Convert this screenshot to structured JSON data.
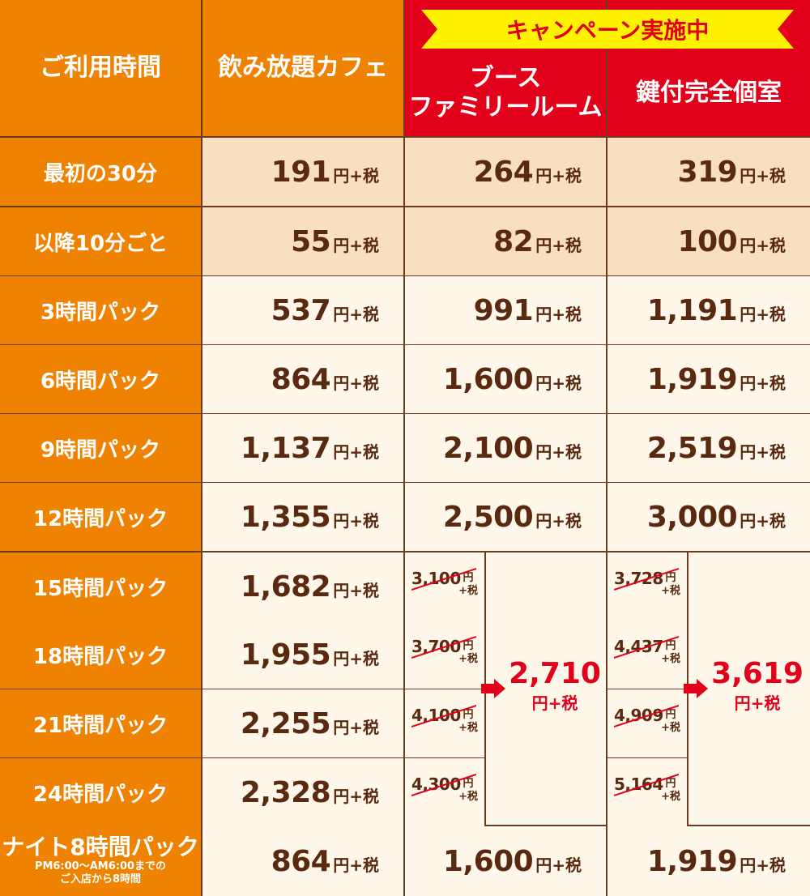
{
  "header": {
    "time_label": "ご利用時間",
    "cafe": "飲み放題カフェ",
    "campaign_banner": "キャンペーン実施中",
    "booth_line1": "ブース",
    "booth_line2": "ファミリールーム",
    "private_room": "鍵付完全個室"
  },
  "unit": "円+税",
  "rows": [
    {
      "label": "最初の30分",
      "cafe": "191",
      "booth": "264",
      "private": "319"
    },
    {
      "label": "以降10分ごと",
      "cafe": "55",
      "booth": "82",
      "private": "100"
    },
    {
      "label": "3時間パック",
      "cafe": "537",
      "booth": "991",
      "private": "1,191"
    },
    {
      "label": "6時間パック",
      "cafe": "864",
      "booth": "1,600",
      "private": "1,919"
    },
    {
      "label": "9時間パック",
      "cafe": "1,137",
      "booth": "2,100",
      "private": "2,519"
    },
    {
      "label": "12時間パック",
      "cafe": "1,355",
      "booth": "2,500",
      "private": "3,000"
    },
    {
      "label": "15時間パック",
      "cafe": "1,682",
      "booth_old": "3,100",
      "private_old": "3,728"
    },
    {
      "label": "18時間パック",
      "cafe": "1,955",
      "booth_old": "3,700",
      "private_old": "4,437"
    },
    {
      "label": "21時間パック",
      "cafe": "2,255",
      "booth_old": "4,100",
      "private_old": "4,909"
    },
    {
      "label": "24時間パック",
      "cafe": "2,328",
      "booth_old": "4,300",
      "private_old": "5,164"
    }
  ],
  "old_unit_top": "円",
  "old_unit_bottom": "+税",
  "campaign": {
    "booth": "2,710",
    "private": "3,619"
  },
  "night": {
    "label": "ナイト8時間パック",
    "note_line1": "PM6:00〜AM6:00までの",
    "note_line2": "ご入店から8時間",
    "cafe": "864",
    "booth": "1,600",
    "private": "1,919"
  },
  "colors": {
    "orange": "#ef8200",
    "red": "#e2001a",
    "yellow": "#fff200",
    "brown": "#5a2a10"
  }
}
